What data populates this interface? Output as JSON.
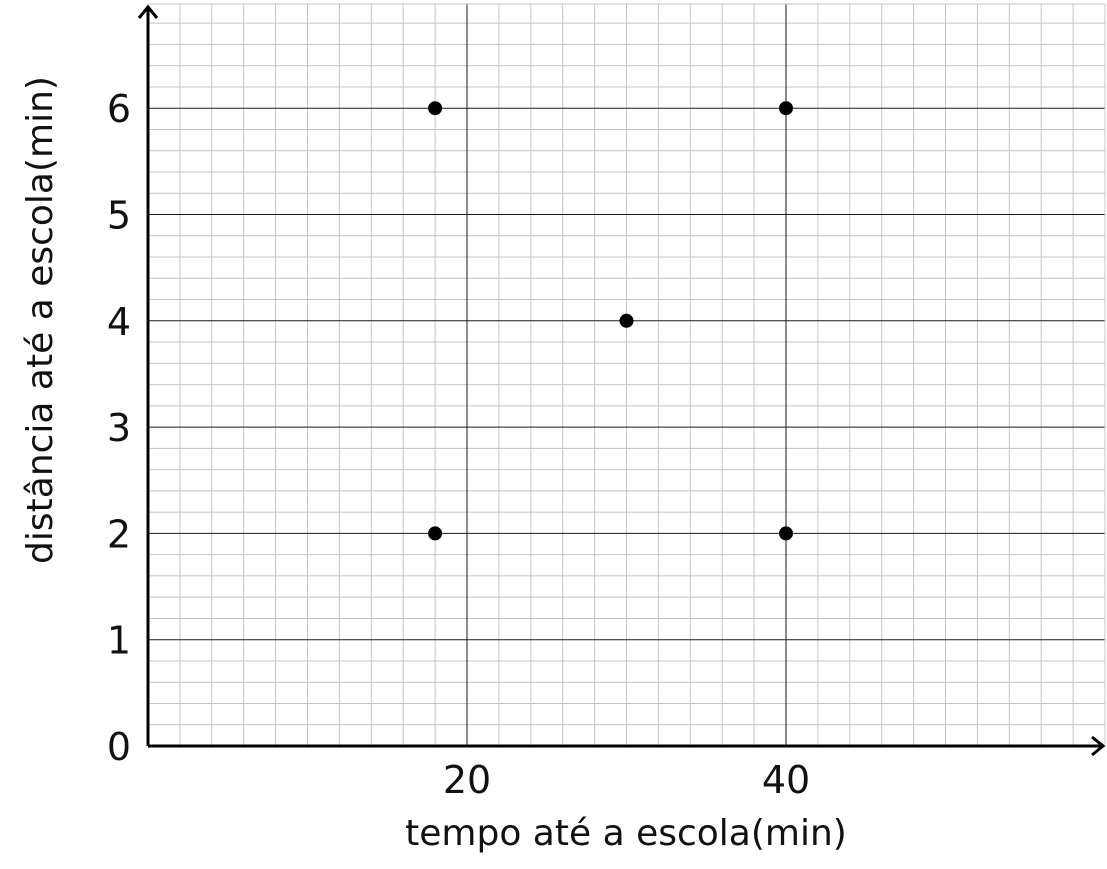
{
  "chart_data": {
    "type": "scatter",
    "xlabel": "tempo até a escola(min)",
    "ylabel": "distância até a escola(min)",
    "xlim": [
      0,
      60
    ],
    "ylim": [
      0,
      7
    ],
    "x_major_step": 20,
    "x_minor_step": 2,
    "y_major_step": 1,
    "y_minor_step": 0.2,
    "x_ticks": [
      "20",
      "40"
    ],
    "y_ticks": [
      "0",
      "1",
      "2",
      "3",
      "4",
      "5",
      "6"
    ],
    "grid": true,
    "points": [
      {
        "x": 18,
        "y": 6
      },
      {
        "x": 40,
        "y": 6
      },
      {
        "x": 30,
        "y": 4
      },
      {
        "x": 18,
        "y": 2
      },
      {
        "x": 40,
        "y": 2
      }
    ]
  }
}
